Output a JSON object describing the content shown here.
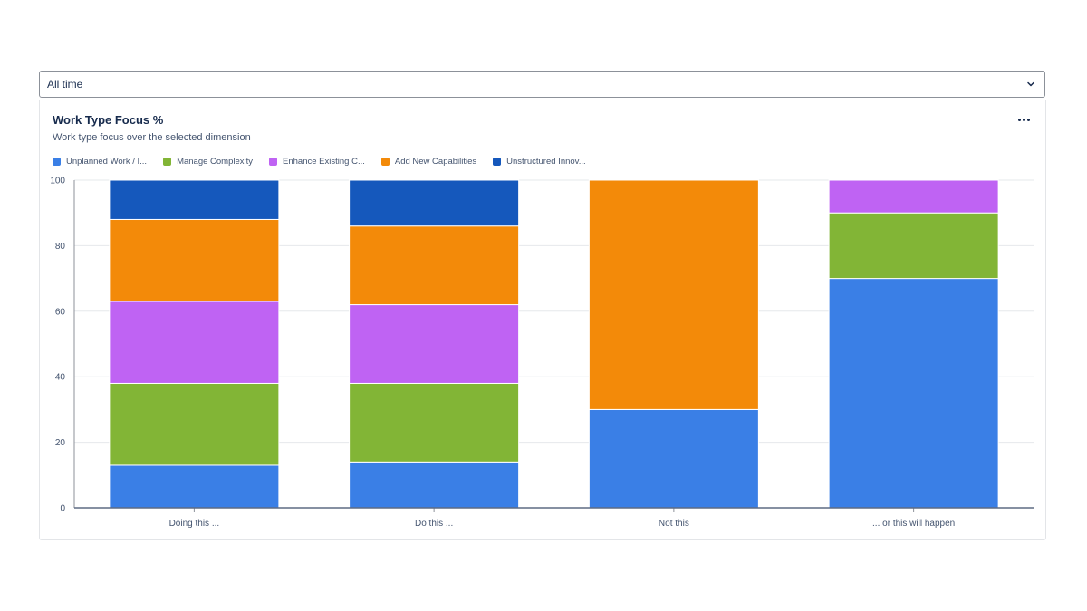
{
  "filter": {
    "value": "All time",
    "icon": "chevron-down-icon"
  },
  "card": {
    "title": "Work Type Focus %",
    "subtitle": "Work type focus over the selected dimension",
    "menu_icon": "more-horizontal-icon"
  },
  "chart_data": {
    "type": "bar",
    "stacked": true,
    "categories": [
      "Doing this ...",
      "Do this ...",
      "Not this",
      "... or this will happen"
    ],
    "series": [
      {
        "name": "Unplanned Work / I...",
        "color": "#3a7fe6",
        "values": [
          13,
          14,
          30,
          70
        ]
      },
      {
        "name": "Manage Complexity",
        "color": "#82b536",
        "values": [
          25,
          24,
          0,
          20
        ]
      },
      {
        "name": "Enhance Existing C...",
        "color": "#bf63f3",
        "values": [
          25,
          24,
          0,
          10
        ]
      },
      {
        "name": "Add New Capabilities",
        "color": "#f38a09",
        "values": [
          25,
          24,
          70,
          0
        ]
      },
      {
        "name": "Unstructured Innov...",
        "color": "#1558bc",
        "values": [
          12,
          14,
          0,
          0
        ]
      }
    ],
    "ylim": [
      0,
      100
    ],
    "yticks": [
      0,
      20,
      40,
      60,
      80,
      100
    ],
    "grid": true,
    "legend_position": "top-left"
  }
}
